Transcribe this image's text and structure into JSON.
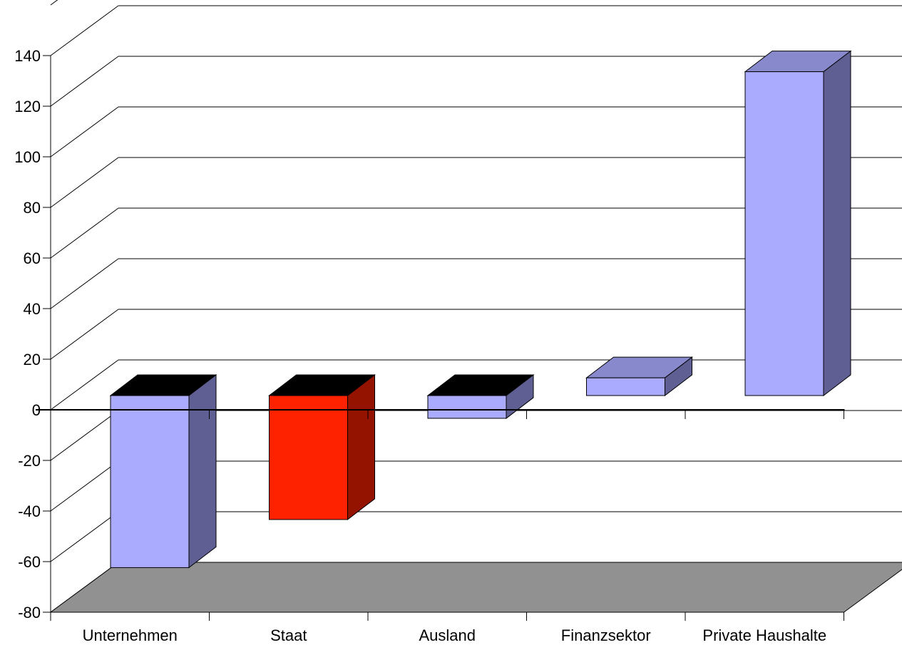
{
  "chart_data": {
    "type": "bar",
    "style": "3d-column",
    "title": "",
    "xlabel": "",
    "ylabel": "",
    "categories": [
      "Unternehmen",
      "Staat",
      "Ausland",
      "Finanzsektor",
      "Private Haushalte"
    ],
    "values": [
      -68,
      -49,
      -9,
      7,
      128
    ],
    "ylim": [
      -80,
      160
    ],
    "yticks": [
      -80,
      -60,
      -40,
      -20,
      0,
      20,
      40,
      60,
      80,
      100,
      120,
      140
    ],
    "ytick_labels": [
      "-80",
      "-60",
      "-40",
      "-20",
      "0",
      "20",
      "40",
      "60",
      "80",
      "100",
      "120",
      "140"
    ],
    "grid": true,
    "legend": "none",
    "colors": {
      "default_front": "#AAAAFF",
      "default_side": "#5F5F94",
      "default_top": "#8888CC",
      "highlight_front": "#FF2200",
      "highlight_side": "#931200",
      "neg_top": "#000000",
      "floor": "#919191",
      "grid": "#000000"
    },
    "highlight": [
      "Staat"
    ]
  }
}
